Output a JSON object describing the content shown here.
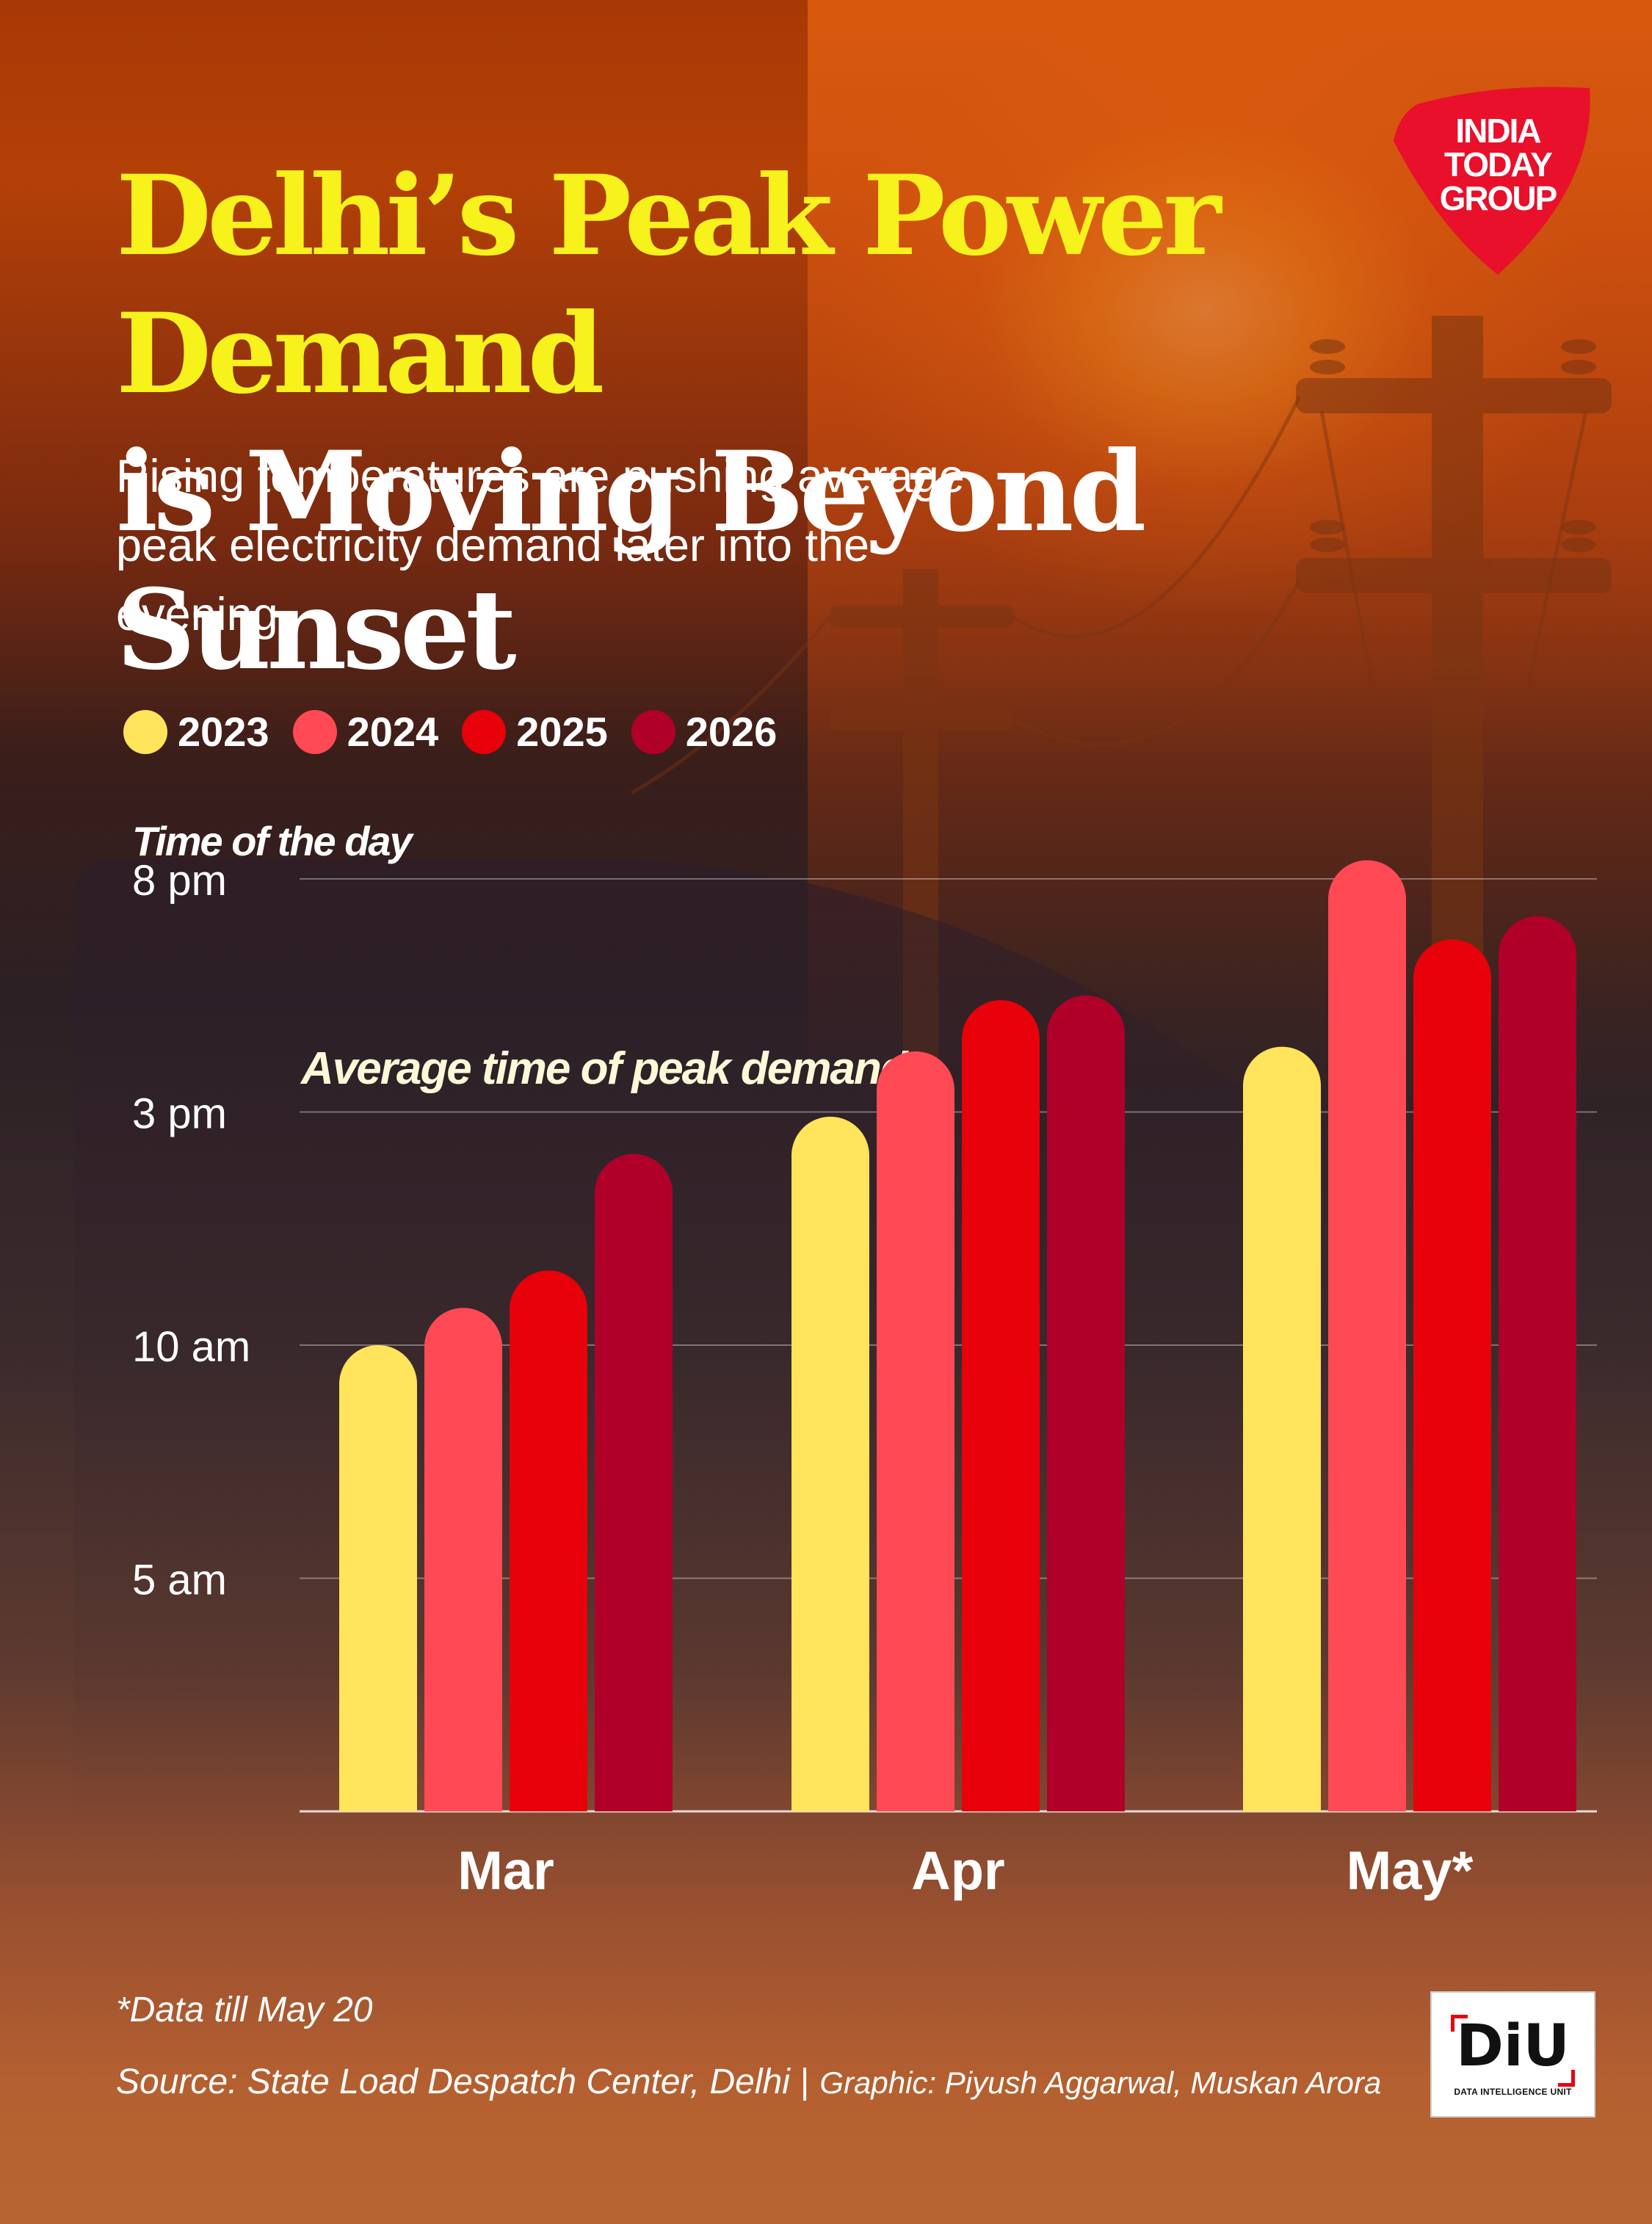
{
  "brand": {
    "logo_text": "INDIA TODAY GROUP",
    "logo_color": "#e8102a"
  },
  "title": {
    "line1": "Delhi’s Peak Power Demand",
    "line2": "is Moving Beyond Sunset"
  },
  "subtitle": "Rising temperatures are pushing average peak electricity demand later into the evening",
  "colors": {
    "title_accent": "#f7f21c"
  },
  "chart_data": {
    "type": "bar",
    "ylabel": "Time of the day",
    "annotation": "Average time of peak demand",
    "categories": [
      "Mar",
      "Apr",
      "May*"
    ],
    "yticks": [
      {
        "label": "5 am",
        "value": 5
      },
      {
        "label": "10 am",
        "value": 10
      },
      {
        "label": "3 pm",
        "value": 15
      },
      {
        "label": "8 pm",
        "value": 20
      }
    ],
    "ylim": [
      0,
      20
    ],
    "grid": true,
    "legend_position": "top-left",
    "series": [
      {
        "name": "2023",
        "color": "#ffe45c",
        "values": [
          10.0,
          14.9,
          16.4
        ]
      },
      {
        "name": "2024",
        "color": "#ff4a55",
        "values": [
          10.8,
          16.3,
          20.4
        ]
      },
      {
        "name": "2025",
        "color": "#e8000a",
        "values": [
          11.6,
          17.4,
          18.7
        ]
      },
      {
        "name": "2026",
        "color": "#b0002a",
        "values": [
          14.1,
          17.5,
          19.2
        ]
      }
    ]
  },
  "footnote": "*Data till May 20",
  "source": {
    "text": "Source: State Load Despatch Center, Delhi",
    "separator": "|",
    "credit": "Graphic: Piyush Aggarwal, Muskan Arora"
  },
  "diu_logo": {
    "mark": "DiU",
    "subtext": "DATA INTELLIGENCE UNIT"
  }
}
